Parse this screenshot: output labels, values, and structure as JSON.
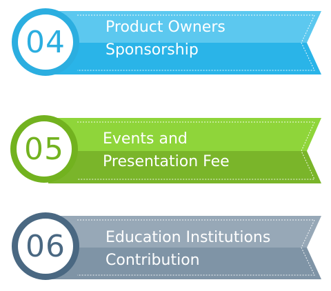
{
  "steps": [
    {
      "number": "04",
      "line1": "Product Owners",
      "line2": "Sponsorship",
      "colors": {
        "ring": "#2BAEE0",
        "number": "#2BAEE0",
        "top": "#5CC8EF",
        "bottom": "#2AB4E8"
      }
    },
    {
      "number": "05",
      "line1": "Events and",
      "line2": "Presentation Fee",
      "colors": {
        "ring": "#72B21F",
        "number": "#72B21F",
        "top": "#8FD53A",
        "bottom": "#7AB52A"
      }
    },
    {
      "number": "06",
      "line1": "Education Institutions",
      "line2": "Contribution",
      "colors": {
        "ring": "#4A6882",
        "number": "#4A6882",
        "top": "#97A8B7",
        "bottom": "#7F94A6"
      }
    }
  ]
}
